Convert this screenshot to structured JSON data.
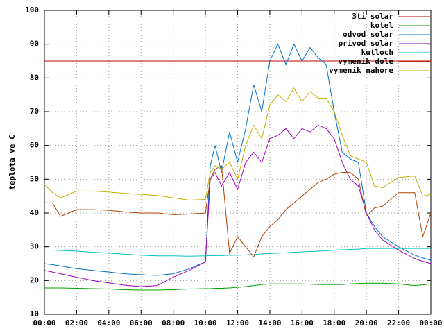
{
  "chart_data": {
    "type": "line",
    "ylabel": "teplota ve C",
    "x": [
      0,
      0.5,
      1,
      2,
      3,
      4,
      5,
      6,
      7,
      8,
      9,
      10,
      10.3,
      10.6,
      11,
      11.5,
      12,
      12.5,
      13,
      13.5,
      14,
      14.5,
      15,
      15.5,
      16,
      16.5,
      17,
      17.5,
      18,
      18.5,
      19,
      19.5,
      20,
      20.5,
      21,
      22,
      23,
      23.5,
      24
    ],
    "xlim": [
      0,
      24
    ],
    "xticks": [
      {
        "value": 0,
        "label": "00:00"
      },
      {
        "value": 2,
        "label": "02:00"
      },
      {
        "value": 4,
        "label": "04:00"
      },
      {
        "value": 6,
        "label": "06:00"
      },
      {
        "value": 8,
        "label": "08:00"
      },
      {
        "value": 10,
        "label": "10:00"
      },
      {
        "value": 12,
        "label": "12:00"
      },
      {
        "value": 14,
        "label": "14:00"
      },
      {
        "value": 16,
        "label": "16:00"
      },
      {
        "value": 18,
        "label": "18:00"
      },
      {
        "value": 20,
        "label": "20:00"
      },
      {
        "value": 22,
        "label": "22:00"
      },
      {
        "value": 24,
        "label": "00:00"
      }
    ],
    "ylim": [
      10,
      100
    ],
    "yticks": [
      10,
      20,
      30,
      40,
      50,
      60,
      70,
      80,
      90,
      100
    ],
    "grid": true,
    "legend": "top-right",
    "series": [
      {
        "name": "3ti solar",
        "color": "#c00000",
        "values": [
          85,
          85,
          85,
          85,
          85,
          85,
          85,
          85,
          85,
          85,
          85,
          85,
          85,
          85,
          85,
          85,
          85,
          85,
          85,
          85,
          85,
          85,
          85,
          85,
          85,
          85,
          85,
          85,
          85,
          85,
          85,
          85,
          85,
          85,
          85,
          85,
          85,
          85,
          85
        ]
      },
      {
        "name": "kotel",
        "color": "#00a000",
        "values": [
          17.8,
          17.8,
          17.8,
          17.7,
          17.6,
          17.5,
          17.3,
          17.2,
          17.2,
          17.3,
          17.5,
          17.6,
          17.6,
          17.7,
          17.7,
          17.8,
          18,
          18.2,
          18.5,
          18.8,
          19,
          19,
          19,
          19,
          19,
          18.9,
          18.8,
          18.8,
          18.8,
          18.8,
          19,
          19.1,
          19.2,
          19.2,
          19.2,
          19,
          18.5,
          18.7,
          19
        ]
      },
      {
        "name": "odvod solar",
        "color": "#0070c0",
        "values": [
          25,
          24.7,
          24.3,
          23.5,
          23,
          22.5,
          22,
          21.7,
          21.5,
          22,
          23.5,
          25.5,
          54,
          60,
          52,
          64,
          55,
          65,
          78,
          70,
          85,
          90,
          84,
          90,
          85,
          89,
          86,
          84,
          70,
          58,
          56,
          55,
          40,
          36,
          33,
          30,
          27.5,
          26.7,
          26
        ]
      },
      {
        "name": "privod solar",
        "color": "#a000c0",
        "values": [
          23,
          22.5,
          22,
          21,
          20,
          19.3,
          18.6,
          18.2,
          18.5,
          21,
          23,
          25.5,
          50,
          52,
          48,
          52,
          47,
          55,
          58,
          55,
          62,
          63,
          65,
          62,
          65,
          64,
          66,
          65,
          62,
          55,
          50,
          48,
          40,
          35,
          32,
          29,
          26.5,
          25.7,
          25
        ]
      },
      {
        "name": "kutloch",
        "color": "#00c0c0",
        "values": [
          29,
          29,
          28.9,
          28.7,
          28.4,
          28.1,
          27.8,
          27.5,
          27.3,
          27.3,
          27.2,
          27.3,
          27.4,
          27.4,
          27.4,
          27.5,
          27.5,
          27.6,
          27.7,
          27.9,
          28,
          28.1,
          28.2,
          28.4,
          28.5,
          28.6,
          28.7,
          28.8,
          29,
          29.1,
          29.2,
          29.3,
          29.5,
          29.5,
          29.5,
          29.5,
          29.5,
          29.5,
          29.5
        ]
      },
      {
        "name": "vymenik dole",
        "color": "#b04000",
        "values": [
          43,
          43,
          39,
          41,
          41,
          40.8,
          40.3,
          40,
          40,
          39.5,
          39.7,
          40,
          50,
          53,
          54,
          28,
          33,
          30,
          27,
          33,
          36,
          38,
          41,
          43,
          45,
          47,
          49,
          50,
          51.5,
          52,
          52,
          50,
          39,
          41.5,
          42,
          46,
          46,
          33,
          40
        ]
      },
      {
        "name": "vymenik nahore",
        "color": "#c0b000",
        "values": [
          48.5,
          46,
          44.5,
          46.5,
          46.5,
          46.2,
          45.8,
          45.5,
          45.2,
          44.5,
          43.8,
          44,
          52,
          54,
          53,
          55,
          50,
          60,
          66,
          62,
          72,
          75,
          73,
          77,
          73,
          76,
          74,
          74,
          70,
          63,
          57,
          56,
          55,
          48,
          47.5,
          50.5,
          51,
          45,
          45.5
        ]
      }
    ]
  }
}
